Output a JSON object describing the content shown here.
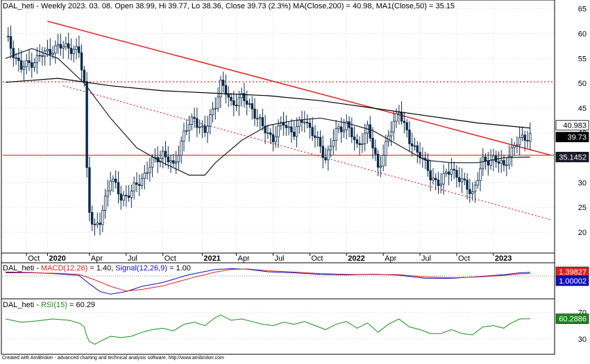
{
  "header": {
    "main_title": "DAL_heti - Weekly 2023. 03. 08. Open 38.99, Hi 39.77, Lo 38.36, Close 39.73 (2.3%) MA(Close,200) = 40.98, MA1(Close,50) = 35.15",
    "macd_prefix": "DAL_heti - ",
    "macd_label": "MACD(12,26)",
    "macd_value": " = 1.40, ",
    "signal_label": "Signal(12,26,9)",
    "signal_value": " = 1.00",
    "rsi_prefix": "DAL_heti - ",
    "rsi_label": "RSI(15)",
    "rsi_value": " = 60.29",
    "footer": "Created with AmiBroker - advanced charting and technical analysis software. http://www.amibroker.com"
  },
  "colors": {
    "up_candle": "#ffffff",
    "down_candle": "#0b2a4a",
    "ma200": "#000000",
    "ma50": "#1a1a2e",
    "trendline": "#e02020",
    "macd": "#1010c0",
    "signal": "#e02020",
    "rsi": "#1a8a1a",
    "grid": "#c8c8c8"
  },
  "chart_data": [
    {
      "type": "candlestick",
      "title": "DAL_heti - Weekly 2023. 03. 08. Open 38.99, Hi 39.77, Lo 38.36, Close 39.73 (2.3%) MA(Close,200) = 40.98, MA1(Close,50) = 35.15",
      "x_labels": [
        "Oct",
        "2020",
        "Apr",
        "Jul",
        "Oct",
        "2021",
        "Apr",
        "Jul",
        "Oct",
        "2022",
        "Apr",
        "Jul",
        "Oct",
        "2023"
      ],
      "y_ticks": [
        20,
        25,
        30,
        35,
        40,
        45,
        50,
        55,
        60,
        65
      ],
      "ylim": [
        16.5,
        66.5
      ],
      "close_path": [
        [
          0,
          59.5
        ],
        [
          6,
          53
        ],
        [
          12,
          55
        ],
        [
          18,
          57
        ],
        [
          24,
          57.5
        ],
        [
          28,
          56
        ],
        [
          30,
          50
        ],
        [
          31,
          33
        ],
        [
          32,
          25
        ],
        [
          33,
          22
        ],
        [
          34,
          20.5
        ],
        [
          36,
          22
        ],
        [
          38,
          27
        ],
        [
          40,
          31
        ],
        [
          44,
          27
        ],
        [
          48,
          28
        ],
        [
          52,
          31
        ],
        [
          56,
          34
        ],
        [
          60,
          36
        ],
        [
          64,
          33
        ],
        [
          68,
          40
        ],
        [
          72,
          43
        ],
        [
          76,
          40
        ],
        [
          80,
          46
        ],
        [
          82,
          50
        ],
        [
          86,
          46
        ],
        [
          90,
          47
        ],
        [
          94,
          45
        ],
        [
          98,
          41
        ],
        [
          102,
          39
        ],
        [
          106,
          42
        ],
        [
          110,
          40
        ],
        [
          114,
          43
        ],
        [
          118,
          39
        ],
        [
          122,
          35
        ],
        [
          126,
          40
        ],
        [
          130,
          42
        ],
        [
          134,
          37
        ],
        [
          138,
          41
        ],
        [
          142,
          33
        ],
        [
          146,
          39
        ],
        [
          150,
          45
        ],
        [
          154,
          38
        ],
        [
          158,
          36
        ],
        [
          162,
          31
        ],
        [
          166,
          30
        ],
        [
          170,
          33
        ],
        [
          174,
          30
        ],
        [
          178,
          28
        ],
        [
          182,
          34
        ],
        [
          186,
          35
        ],
        [
          190,
          33
        ],
        [
          192,
          36
        ],
        [
          196,
          38.5
        ],
        [
          200,
          39.73
        ]
      ],
      "hi_lo_pad": 1.6,
      "ma200": [
        [
          0,
          50.2
        ],
        [
          20,
          51
        ],
        [
          40,
          49.5
        ],
        [
          60,
          48.5
        ],
        [
          80,
          48
        ],
        [
          100,
          47.5
        ],
        [
          120,
          46.5
        ],
        [
          140,
          45
        ],
        [
          160,
          43.5
        ],
        [
          180,
          42
        ],
        [
          200,
          40.98
        ]
      ],
      "ma50": [
        [
          0,
          55
        ],
        [
          10,
          57
        ],
        [
          20,
          55
        ],
        [
          30,
          50
        ],
        [
          40,
          43
        ],
        [
          50,
          37
        ],
        [
          60,
          34
        ],
        [
          70,
          31.5
        ],
        [
          76,
          31.5
        ],
        [
          80,
          34
        ],
        [
          90,
          38.5
        ],
        [
          100,
          41.5
        ],
        [
          110,
          42.5
        ],
        [
          120,
          43
        ],
        [
          130,
          42
        ],
        [
          140,
          40.5
        ],
        [
          150,
          37.5
        ],
        [
          160,
          34.5
        ],
        [
          170,
          34
        ],
        [
          180,
          34
        ],
        [
          190,
          35
        ],
        [
          200,
          35.15
        ]
      ],
      "trend_upper": [
        [
          16,
          62.5
        ],
        [
          208,
          35.5
        ]
      ],
      "trend_lower": [
        [
          22,
          49.5
        ],
        [
          208,
          22.5
        ]
      ],
      "hline_solid": 35.5,
      "hline_dotted": 50.3,
      "price_tags": [
        {
          "value": 40.983,
          "label": "40.983"
        },
        {
          "value": 39.73,
          "label": "39.73"
        },
        {
          "value": 35.1452,
          "label": "35.1452"
        }
      ]
    },
    {
      "type": "line",
      "title": "MACD(12,26) = 1.40, Signal(12,26,9) = 1.00",
      "series": [
        {
          "name": "MACD(12,26)",
          "points": [
            [
              0,
              1.5
            ],
            [
              10,
              1.3
            ],
            [
              20,
              0.8
            ],
            [
              28,
              0.2
            ],
            [
              32,
              -3
            ],
            [
              36,
              -6
            ],
            [
              40,
              -7
            ],
            [
              46,
              -6
            ],
            [
              52,
              -4
            ],
            [
              60,
              -2.5
            ],
            [
              70,
              0.5
            ],
            [
              80,
              2.5
            ],
            [
              86,
              2.8
            ],
            [
              92,
              2.6
            ],
            [
              100,
              1.6
            ],
            [
              110,
              1.2
            ],
            [
              120,
              0.6
            ],
            [
              130,
              0.4
            ],
            [
              140,
              0.7
            ],
            [
              150,
              0.3
            ],
            [
              160,
              -0.9
            ],
            [
              170,
              -0.9
            ],
            [
              180,
              -0.3
            ],
            [
              190,
              0.5
            ],
            [
              196,
              1.2
            ],
            [
              200,
              1.4
            ]
          ]
        },
        {
          "name": "Signal(12,26,9)",
          "points": [
            [
              0,
              1.2
            ],
            [
              10,
              1.2
            ],
            [
              20,
              1
            ],
            [
              28,
              0.6
            ],
            [
              34,
              -1.5
            ],
            [
              40,
              -4
            ],
            [
              46,
              -5.8
            ],
            [
              52,
              -5.2
            ],
            [
              60,
              -3.8
            ],
            [
              70,
              -1
            ],
            [
              80,
              1.5
            ],
            [
              86,
              2.5
            ],
            [
              92,
              2.7
            ],
            [
              100,
              2
            ],
            [
              110,
              1.5
            ],
            [
              120,
              0.9
            ],
            [
              130,
              0.6
            ],
            [
              140,
              0.6
            ],
            [
              150,
              0.5
            ],
            [
              160,
              -0.4
            ],
            [
              170,
              -0.7
            ],
            [
              180,
              -0.4
            ],
            [
              190,
              0.2
            ],
            [
              196,
              0.8
            ],
            [
              200,
              1.0
            ]
          ]
        }
      ],
      "tags": [
        {
          "label": "1.39827",
          "value": 1.39827
        },
        {
          "label": "1.00002",
          "value": 1.00002
        }
      ]
    },
    {
      "type": "line",
      "title": "RSI(15) = 60.29",
      "y_ticks": [
        30,
        70
      ],
      "series": [
        {
          "name": "RSI(15)",
          "points": [
            [
              0,
              60
            ],
            [
              6,
              55
            ],
            [
              12,
              57
            ],
            [
              18,
              60
            ],
            [
              24,
              58
            ],
            [
              28,
              54
            ],
            [
              30,
              48
            ],
            [
              31,
              34
            ],
            [
              32,
              26
            ],
            [
              33,
              24
            ],
            [
              34,
              22
            ],
            [
              36,
              26
            ],
            [
              40,
              34
            ],
            [
              44,
              32
            ],
            [
              48,
              34
            ],
            [
              52,
              40
            ],
            [
              56,
              44
            ],
            [
              60,
              46
            ],
            [
              64,
              42
            ],
            [
              68,
              52
            ],
            [
              72,
              55
            ],
            [
              76,
              50
            ],
            [
              80,
              62
            ],
            [
              82,
              66
            ],
            [
              86,
              58
            ],
            [
              90,
              60
            ],
            [
              94,
              56
            ],
            [
              98,
              52
            ],
            [
              102,
              50
            ],
            [
              106,
              55
            ],
            [
              110,
              52
            ],
            [
              114,
              56
            ],
            [
              118,
              50
            ],
            [
              122,
              44
            ],
            [
              126,
              52
            ],
            [
              130,
              56
            ],
            [
              134,
              46
            ],
            [
              138,
              54
            ],
            [
              142,
              40
            ],
            [
              146,
              52
            ],
            [
              150,
              60
            ],
            [
              154,
              48
            ],
            [
              158,
              44
            ],
            [
              162,
              38
            ],
            [
              166,
              38
            ],
            [
              170,
              44
            ],
            [
              174,
              38
            ],
            [
              178,
              36
            ],
            [
              182,
              48
            ],
            [
              186,
              50
            ],
            [
              190,
              46
            ],
            [
              192,
              52
            ],
            [
              196,
              60
            ],
            [
              200,
              60.29
            ]
          ]
        }
      ],
      "tags": [
        {
          "label": "60.2886",
          "value": 60.2886
        }
      ]
    }
  ]
}
